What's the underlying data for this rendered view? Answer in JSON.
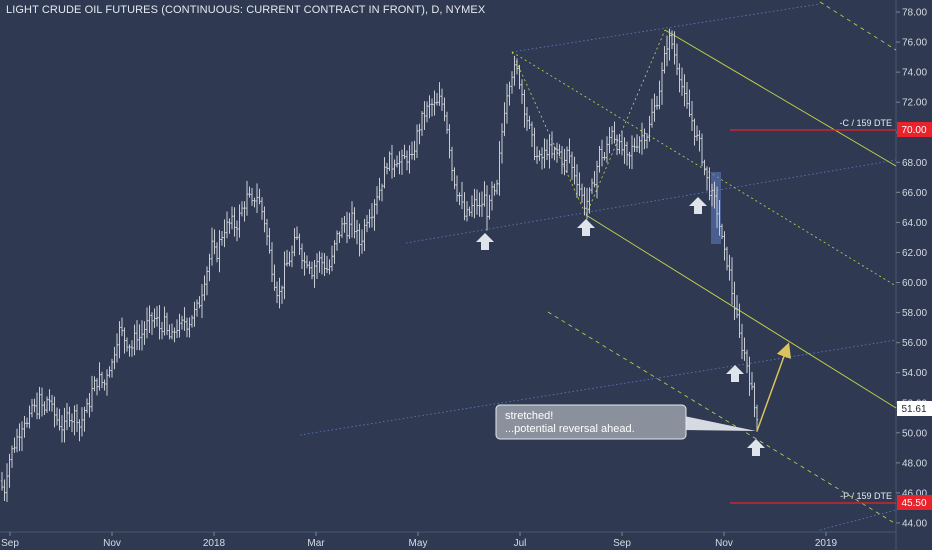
{
  "chart_data": {
    "type": "bar",
    "subtype": "ohlc",
    "title": "LIGHT CRUDE OIL FUTURES (CONTINUOUS: CURRENT CONTRACT IN FRONT), D, NYMEX",
    "ylim": [
      43.4,
      78.8
    ],
    "y_ticks": [
      "44.00",
      "46.00",
      "48.00",
      "50.00",
      "52.00",
      "54.00",
      "56.00",
      "58.00",
      "60.00",
      "62.00",
      "64.00",
      "66.00",
      "68.00",
      "70.00",
      "72.00",
      "74.00",
      "76.00",
      "78.00"
    ],
    "x_ticks": [
      "Sep",
      "Nov",
      "2018",
      "Mar",
      "May",
      "Jul",
      "Sep",
      "Nov",
      "2019"
    ],
    "last_price": "51.61",
    "annotation": {
      "line1": "stretched!",
      "line2": "...potential reversal ahead."
    },
    "levels": [
      {
        "label": "-C / 159 DTE",
        "value": "70.00",
        "color": "#e8232c"
      },
      {
        "label": "-P / 159 DTE",
        "value": "45.50",
        "color": "#e8232c"
      }
    ],
    "colors": {
      "background": "#2f3a52",
      "bars": "#c8ccd4",
      "pitchfork": "#c8d64a",
      "channel": "#5f7cc4",
      "target_arrow": "#d9c35a",
      "marker": "#dfe3ea"
    },
    "swing_markers": 6,
    "grid": false,
    "price_path": [
      [
        0,
        46.8
      ],
      [
        4,
        46
      ],
      [
        8,
        48
      ],
      [
        12,
        48.8
      ],
      [
        16,
        49.5
      ],
      [
        20,
        50.2
      ],
      [
        24,
        51
      ],
      [
        28,
        50.3
      ],
      [
        32,
        51.8
      ],
      [
        36,
        51.4
      ],
      [
        40,
        52.3
      ],
      [
        44,
        51.2
      ],
      [
        48,
        52.6
      ],
      [
        52,
        51.5
      ],
      [
        56,
        51
      ],
      [
        60,
        50.6
      ],
      [
        64,
        50.2
      ],
      [
        68,
        51.4
      ],
      [
        72,
        51
      ],
      [
        76,
        51.4
      ],
      [
        80,
        50.3
      ],
      [
        84,
        51.5
      ],
      [
        88,
        51.6
      ],
      [
        92,
        52.8
      ],
      [
        96,
        53.4
      ],
      [
        100,
        53.6
      ],
      [
        104,
        53.1
      ],
      [
        108,
        54.4
      ],
      [
        112,
        54.6
      ],
      [
        116,
        56.1
      ],
      [
        120,
        56.9
      ],
      [
        124,
        56.3
      ],
      [
        128,
        56
      ],
      [
        132,
        55.7
      ],
      [
        136,
        56.6
      ],
      [
        140,
        56.3
      ],
      [
        144,
        56.9
      ],
      [
        148,
        57.3
      ],
      [
        152,
        57.5
      ],
      [
        156,
        57.6
      ],
      [
        160,
        56.9
      ],
      [
        164,
        57.4
      ],
      [
        168,
        56.4
      ],
      [
        172,
        56.3
      ],
      [
        176,
        57.1
      ],
      [
        180,
        56.9
      ],
      [
        184,
        57.5
      ],
      [
        188,
        57.2
      ],
      [
        192,
        57.8
      ],
      [
        196,
        58.1
      ],
      [
        200,
        58.8
      ],
      [
        204,
        60.2
      ],
      [
        208,
        61.1
      ],
      [
        212,
        62.4
      ],
      [
        216,
        61.7
      ],
      [
        220,
        62.8
      ],
      [
        224,
        63.6
      ],
      [
        228,
        63.8
      ],
      [
        232,
        64
      ],
      [
        236,
        63.7
      ],
      [
        240,
        64.5
      ],
      [
        244,
        65.2
      ],
      [
        248,
        65.8
      ],
      [
        252,
        65.1
      ],
      [
        256,
        66
      ],
      [
        260,
        65.2
      ],
      [
        264,
        64.3
      ],
      [
        268,
        62.6
      ],
      [
        272,
        61
      ],
      [
        276,
        59.6
      ],
      [
        280,
        59.2
      ],
      [
        284,
        60.7
      ],
      [
        288,
        61.4
      ],
      [
        292,
        61.9
      ],
      [
        296,
        63
      ],
      [
        300,
        62.4
      ],
      [
        304,
        61.3
      ],
      [
        308,
        61.6
      ],
      [
        312,
        60.8
      ],
      [
        316,
        61.4
      ],
      [
        320,
        61.5
      ],
      [
        324,
        61.2
      ],
      [
        328,
        60.8
      ],
      [
        332,
        61.5
      ],
      [
        336,
        62.9
      ],
      [
        340,
        63.4
      ],
      [
        344,
        64
      ],
      [
        348,
        63.4
      ],
      [
        352,
        64.2
      ],
      [
        356,
        63.3
      ],
      [
        360,
        62.5
      ],
      [
        364,
        63.6
      ],
      [
        368,
        64.6
      ],
      [
        372,
        64.8
      ],
      [
        376,
        65.8
      ],
      [
        380,
        66.3
      ],
      [
        384,
        67.2
      ],
      [
        388,
        68.3
      ],
      [
        392,
        67.8
      ],
      [
        396,
        68.4
      ],
      [
        400,
        67.9
      ],
      [
        404,
        68.2
      ],
      [
        408,
        68.4
      ],
      [
        412,
        68.1
      ],
      [
        416,
        69.6
      ],
      [
        420,
        70.5
      ],
      [
        424,
        71.2
      ],
      [
        428,
        71.6
      ],
      [
        432,
        71.8
      ],
      [
        436,
        71.7
      ],
      [
        440,
        72.2
      ],
      [
        444,
        71.6
      ],
      [
        448,
        70
      ],
      [
        452,
        67.6
      ],
      [
        456,
        66.3
      ],
      [
        460,
        65.7
      ],
      [
        464,
        64.4
      ],
      [
        468,
        64.5
      ],
      [
        472,
        65
      ],
      [
        476,
        65.4
      ],
      [
        480,
        64.8
      ],
      [
        484,
        65.8
      ],
      [
        488,
        64.4
      ],
      [
        492,
        66.1
      ],
      [
        496,
        65.5
      ],
      [
        500,
        68.7
      ],
      [
        504,
        71.4
      ],
      [
        508,
        73.2
      ],
      [
        512,
        74
      ],
      [
        516,
        74.2
      ],
      [
        520,
        73.4
      ],
      [
        524,
        71.8
      ],
      [
        528,
        70.6
      ],
      [
        532,
        69.4
      ],
      [
        536,
        68.4
      ],
      [
        540,
        68.1
      ],
      [
        544,
        68.5
      ],
      [
        548,
        69
      ],
      [
        552,
        68.4
      ],
      [
        556,
        68.8
      ],
      [
        560,
        68.6
      ],
      [
        564,
        67.8
      ],
      [
        568,
        68.9
      ],
      [
        572,
        67.6
      ],
      [
        576,
        67.1
      ],
      [
        580,
        66.2
      ],
      [
        584,
        65.2
      ],
      [
        588,
        65.5
      ],
      [
        592,
        66.2
      ],
      [
        596,
        67.4
      ],
      [
        600,
        68.8
      ],
      [
        604,
        68.2
      ],
      [
        608,
        69.2
      ],
      [
        612,
        70.3
      ],
      [
        616,
        69.4
      ],
      [
        620,
        68.9
      ],
      [
        624,
        68.8
      ],
      [
        628,
        67.9
      ],
      [
        632,
        68.9
      ],
      [
        636,
        69.3
      ],
      [
        640,
        69.6
      ],
      [
        644,
        69.9
      ],
      [
        648,
        69.9
      ],
      [
        652,
        71.2
      ],
      [
        656,
        71.9
      ],
      [
        660,
        73.1
      ],
      [
        664,
        74.7
      ],
      [
        668,
        76.3
      ],
      [
        672,
        75.9
      ],
      [
        676,
        74.8
      ],
      [
        680,
        73.8
      ],
      [
        684,
        72.3
      ],
      [
        688,
        71.4
      ],
      [
        692,
        70.8
      ],
      [
        696,
        69.7
      ],
      [
        700,
        69.1
      ],
      [
        704,
        67.7
      ],
      [
        708,
        66.5
      ],
      [
        712,
        65.7
      ],
      [
        716,
        65.2
      ],
      [
        720,
        63.6
      ],
      [
        724,
        61.9
      ],
      [
        728,
        61.3
      ],
      [
        732,
        59.4
      ],
      [
        736,
        57.9
      ],
      [
        740,
        56.2
      ],
      [
        744,
        55.4
      ],
      [
        748,
        54.3
      ],
      [
        752,
        52.7
      ],
      [
        756,
        51.1
      ],
      [
        760,
        51.6
      ]
    ]
  }
}
